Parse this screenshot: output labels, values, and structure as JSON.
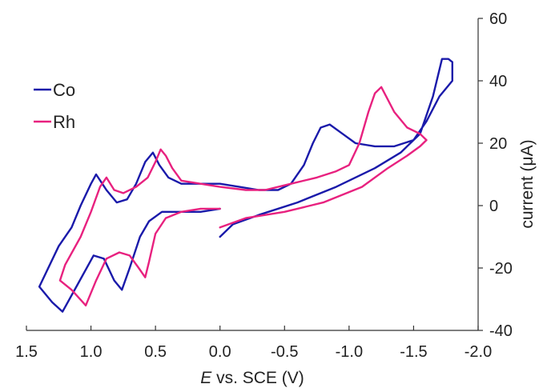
{
  "chart_data": {
    "type": "line",
    "title": "",
    "xlabel_italic": "E",
    "xlabel_rest": " vs. SCE (V)",
    "ylabel": "current (μA)",
    "xlim": [
      1.5,
      -2.0
    ],
    "ylim": [
      -40,
      60
    ],
    "x_ticks": [
      1.5,
      1.0,
      0.5,
      0.0,
      -0.5,
      -1.0,
      -1.5,
      -2.0
    ],
    "x_tick_labels": [
      "1.5",
      "1.0",
      "0.5",
      "0.0",
      "-0.5",
      "-1.0",
      "-1.5",
      "-2.0"
    ],
    "y_ticks": [
      -40,
      -20,
      0,
      20,
      40,
      60
    ],
    "y_tick_labels": [
      "-40",
      "-20",
      "0",
      "20",
      "40",
      "60"
    ],
    "legend_position": "top-left",
    "grid": false,
    "series": [
      {
        "name": "Co",
        "color": "#1a1aaa",
        "points": [
          [
            0.0,
            -10
          ],
          [
            -0.1,
            -6
          ],
          [
            -0.3,
            -3
          ],
          [
            -0.6,
            1
          ],
          [
            -0.9,
            6
          ],
          [
            -1.2,
            12
          ],
          [
            -1.4,
            17
          ],
          [
            -1.55,
            23
          ],
          [
            -1.65,
            35
          ],
          [
            -1.72,
            47
          ],
          [
            -1.77,
            47
          ],
          [
            -1.8,
            46
          ],
          [
            -1.8,
            40
          ],
          [
            -1.7,
            35
          ],
          [
            -1.6,
            27
          ],
          [
            -1.5,
            21
          ],
          [
            -1.35,
            19
          ],
          [
            -1.2,
            19
          ],
          [
            -1.05,
            20
          ],
          [
            -0.95,
            23
          ],
          [
            -0.85,
            26
          ],
          [
            -0.78,
            25
          ],
          [
            -0.72,
            20
          ],
          [
            -0.65,
            13
          ],
          [
            -0.55,
            7
          ],
          [
            -0.45,
            5
          ],
          [
            -0.3,
            5
          ],
          [
            -0.15,
            6
          ],
          [
            0.0,
            7
          ],
          [
            0.15,
            7
          ],
          [
            0.3,
            7
          ],
          [
            0.4,
            9
          ],
          [
            0.47,
            13
          ],
          [
            0.52,
            17
          ],
          [
            0.58,
            14
          ],
          [
            0.65,
            7
          ],
          [
            0.72,
            2
          ],
          [
            0.8,
            1
          ],
          [
            0.88,
            5
          ],
          [
            0.96,
            10
          ],
          [
            1.0,
            7
          ],
          [
            1.08,
            0
          ],
          [
            1.15,
            -7
          ],
          [
            1.25,
            -13
          ],
          [
            1.4,
            -26
          ],
          [
            1.3,
            -31
          ],
          [
            1.22,
            -34
          ],
          [
            1.1,
            -25
          ],
          [
            0.98,
            -16
          ],
          [
            0.9,
            -17
          ],
          [
            0.82,
            -24
          ],
          [
            0.76,
            -27
          ],
          [
            0.7,
            -20
          ],
          [
            0.62,
            -10
          ],
          [
            0.55,
            -5
          ],
          [
            0.45,
            -2
          ],
          [
            0.3,
            -2
          ],
          [
            0.15,
            -2
          ],
          [
            0.0,
            -1
          ]
        ]
      },
      {
        "name": "Rh",
        "color": "#e8217f",
        "points": [
          [
            0.0,
            -7
          ],
          [
            -0.2,
            -4
          ],
          [
            -0.5,
            -2
          ],
          [
            -0.8,
            1
          ],
          [
            -1.1,
            6
          ],
          [
            -1.3,
            12
          ],
          [
            -1.45,
            16
          ],
          [
            -1.55,
            19
          ],
          [
            -1.6,
            21
          ],
          [
            -1.55,
            23
          ],
          [
            -1.45,
            25
          ],
          [
            -1.35,
            30
          ],
          [
            -1.25,
            38
          ],
          [
            -1.2,
            36
          ],
          [
            -1.15,
            30
          ],
          [
            -1.08,
            20
          ],
          [
            -1.0,
            13
          ],
          [
            -0.9,
            11
          ],
          [
            -0.75,
            9
          ],
          [
            -0.55,
            7
          ],
          [
            -0.35,
            5
          ],
          [
            -0.2,
            5
          ],
          [
            0.0,
            6
          ],
          [
            0.15,
            7
          ],
          [
            0.3,
            8
          ],
          [
            0.37,
            12
          ],
          [
            0.42,
            16
          ],
          [
            0.46,
            18
          ],
          [
            0.5,
            14
          ],
          [
            0.56,
            9
          ],
          [
            0.65,
            6
          ],
          [
            0.75,
            4
          ],
          [
            0.82,
            5
          ],
          [
            0.88,
            9
          ],
          [
            0.93,
            6
          ],
          [
            1.0,
            -2
          ],
          [
            1.08,
            -10
          ],
          [
            1.2,
            -19
          ],
          [
            1.24,
            -24
          ],
          [
            1.15,
            -27
          ],
          [
            1.04,
            -32
          ],
          [
            0.96,
            -24
          ],
          [
            0.88,
            -17
          ],
          [
            0.78,
            -15
          ],
          [
            0.7,
            -16
          ],
          [
            0.63,
            -20
          ],
          [
            0.58,
            -23
          ],
          [
            0.55,
            -18
          ],
          [
            0.5,
            -9
          ],
          [
            0.42,
            -4
          ],
          [
            0.3,
            -2
          ],
          [
            0.15,
            -1
          ],
          [
            0.0,
            -1
          ]
        ]
      }
    ]
  }
}
